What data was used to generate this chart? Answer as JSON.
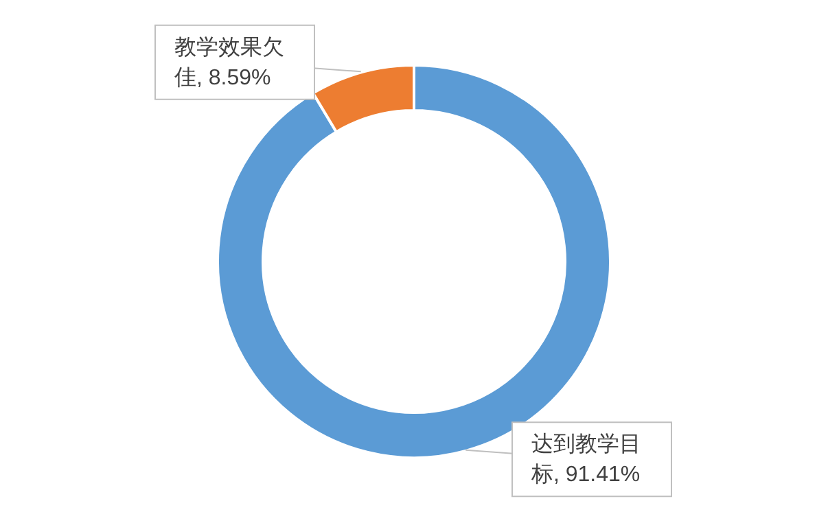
{
  "chart_data": {
    "type": "donut",
    "categories": [
      "达到教学目标",
      "教学效果欠佳"
    ],
    "values": [
      91.41,
      8.59
    ],
    "colors": [
      "#5b9bd5",
      "#ed7d31"
    ],
    "value_labels": [
      ", 91.41%",
      ", 8.59%"
    ]
  }
}
